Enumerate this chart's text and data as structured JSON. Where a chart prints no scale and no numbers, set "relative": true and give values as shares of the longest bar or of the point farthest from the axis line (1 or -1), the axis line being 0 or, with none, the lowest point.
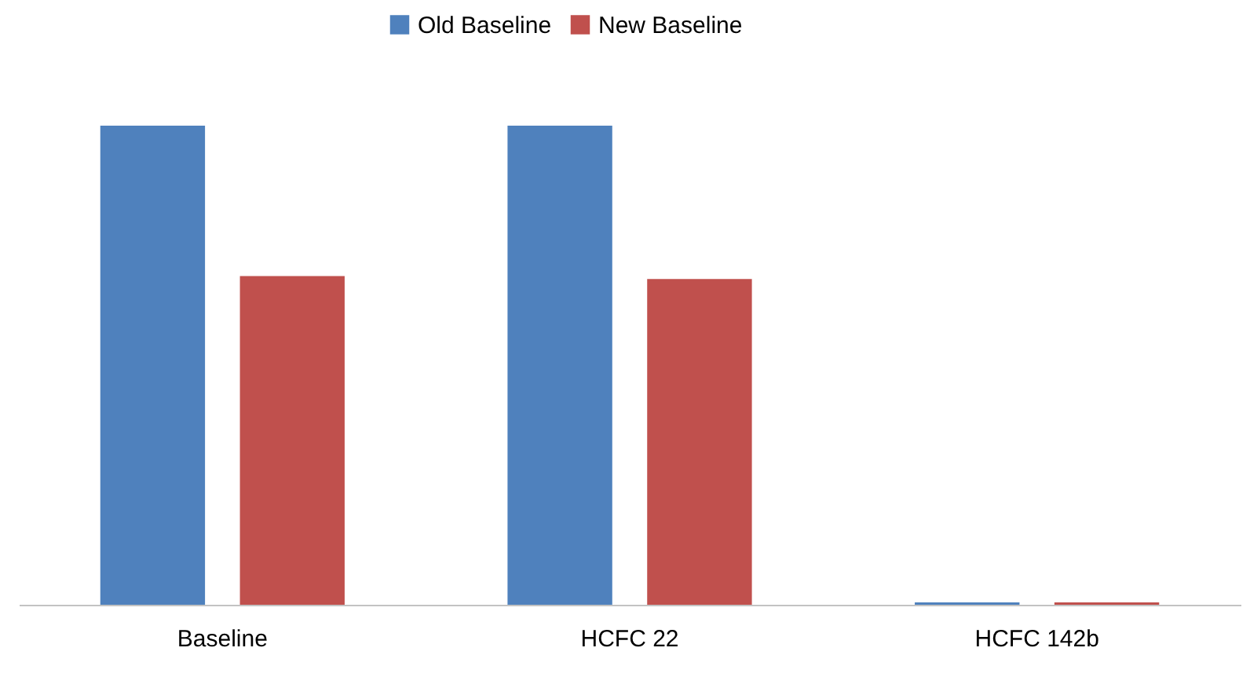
{
  "chart_data": {
    "type": "bar",
    "relative": true,
    "categories": [
      "Baseline",
      "HCFC 22",
      "HCFC 142b"
    ],
    "series": [
      {
        "name": "Old Baseline",
        "color": "#4f81bd",
        "values": [
          1.0,
          1.0,
          0.005
        ]
      },
      {
        "name": "New Baseline",
        "color": "#c0504d",
        "values": [
          0.686,
          0.68,
          0.005
        ]
      }
    ],
    "legend": "top",
    "grid": false
  }
}
